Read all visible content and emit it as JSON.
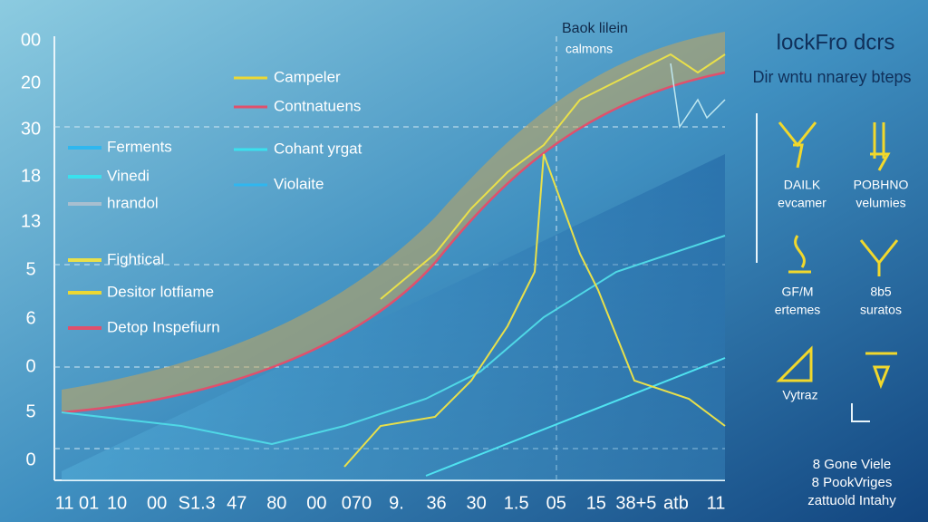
{
  "y_labels": [
    "00",
    "20",
    "30",
    "18",
    "13",
    "5",
    "6",
    "0",
    "5",
    "0"
  ],
  "x_labels": [
    "11 01",
    "10",
    "00",
    "S1.3",
    "47",
    "80",
    "00",
    "070",
    "9.",
    "36",
    "30",
    "1.5",
    "05",
    "15",
    "38+5",
    "atb",
    "11"
  ],
  "left_legend": [
    "Ferments",
    "Vinedi",
    "hrandol",
    "Fightical",
    "Desitor lotfiame",
    "Detop Inspefiurn"
  ],
  "middle_legend": [
    "Campeler",
    "Contnatuens",
    "Cohant yrgat",
    "Violaite"
  ],
  "annotation": {
    "title": "Baok lilein",
    "subtitle": "calmons"
  },
  "panel": {
    "title": "lockFro dcrs",
    "subtitle": "Dir wntu nnarey bteps",
    "icons": [
      [
        "DAILK",
        "evcamer"
      ],
      [
        "POBHNO",
        "velumies"
      ],
      [
        "GF/M",
        "ertemes"
      ],
      [
        "8b5",
        "suratos"
      ],
      [
        "Vytraz"
      ]
    ]
  },
  "footer": [
    "8 Gone Viele",
    "8 PookVriges",
    "zattuold Intahy"
  ]
}
